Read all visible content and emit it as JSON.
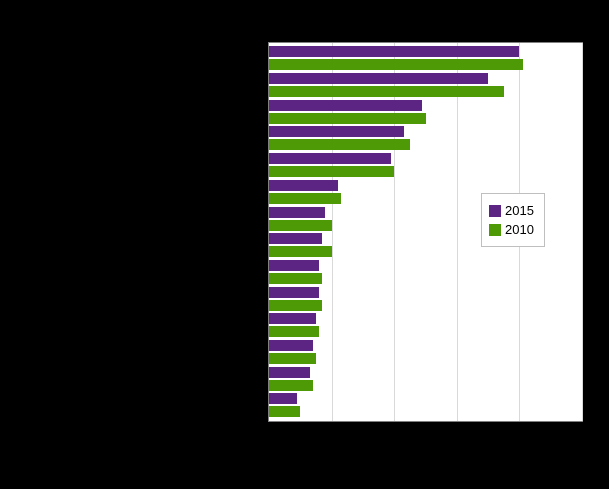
{
  "chart_data": {
    "type": "bar",
    "orientation": "horizontal",
    "title": "",
    "xlabel": "",
    "ylabel": "",
    "xlim": [
      0,
      100
    ],
    "grid": true,
    "gridline_values": [
      20,
      40,
      60,
      80,
      100
    ],
    "legend_position": "middle-right",
    "categories": [
      "",
      "",
      "",
      "",
      "",
      "",
      "",
      "",
      "",
      "",
      "",
      "",
      "",
      ""
    ],
    "series": [
      {
        "name": "2015",
        "color": "#5c2483",
        "values": [
          80,
          70,
          49,
          43,
          39,
          22,
          18,
          17,
          16,
          16,
          15,
          14,
          13,
          9
        ]
      },
      {
        "name": "2010",
        "color": "#4e9a06",
        "values": [
          81,
          75,
          50,
          45,
          40,
          23,
          20,
          20,
          17,
          17,
          16,
          15,
          14,
          10
        ]
      }
    ]
  }
}
